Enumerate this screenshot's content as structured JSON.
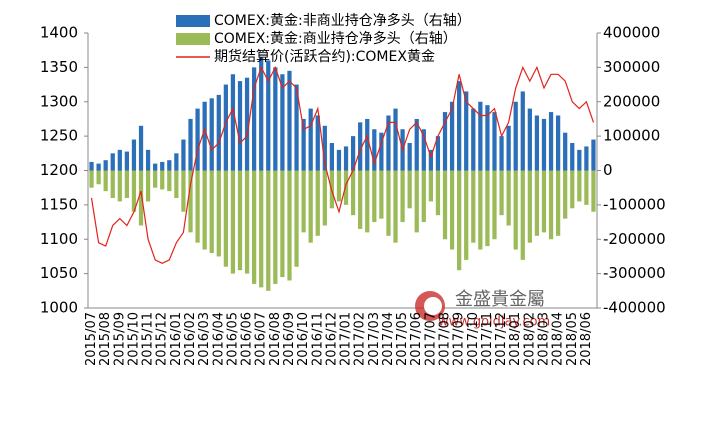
{
  "chart_data": {
    "type": "bar",
    "categories": [
      "2015/07",
      null,
      "2015/08",
      null,
      "2015/09",
      null,
      "2015/10",
      null,
      "2015/11",
      null,
      "2015/12",
      null,
      "2016/01",
      null,
      "2016/02",
      null,
      "2016/03",
      null,
      "2016/04",
      null,
      "2016/05",
      null,
      "2016/06",
      null,
      "2016/07",
      null,
      "2016/08",
      null,
      "2016/09",
      null,
      "2016/10",
      null,
      "2016/11",
      null,
      "2016/12",
      null,
      "2017/01",
      null,
      "2017/02",
      null,
      "2017/03",
      null,
      "2017/04",
      null,
      "2017/05",
      null,
      "2017/06",
      null,
      "2017/07",
      null,
      "2017/08",
      null,
      "2017/09",
      null,
      "2017/10",
      null,
      "2017/11",
      null,
      "2017/12",
      null,
      "2018/01",
      null,
      "2018/02",
      null,
      "2018/03",
      null,
      "2018/04",
      null,
      "2018/05",
      null,
      "2018/06",
      null
    ],
    "series": [
      {
        "name": "COMEX:黄金:非商业持仓净多头（右轴）",
        "type": "bar",
        "axis": "y2",
        "color": "#2a6fb7",
        "values": [
          25000,
          20000,
          30000,
          50000,
          60000,
          55000,
          90000,
          130000,
          60000,
          20000,
          25000,
          30000,
          50000,
          90000,
          150000,
          180000,
          200000,
          210000,
          220000,
          250000,
          280000,
          260000,
          270000,
          300000,
          330000,
          320000,
          300000,
          280000,
          290000,
          250000,
          150000,
          180000,
          160000,
          130000,
          80000,
          60000,
          70000,
          100000,
          140000,
          150000,
          120000,
          110000,
          160000,
          180000,
          120000,
          80000,
          150000,
          120000,
          60000,
          100000,
          170000,
          200000,
          260000,
          230000,
          180000,
          200000,
          190000,
          170000,
          100000,
          130000,
          200000,
          230000,
          180000,
          160000,
          150000,
          170000,
          160000,
          110000,
          80000,
          60000,
          70000,
          90000
        ]
      },
      {
        "name": "COMEX:黄金:商业持仓净多头（右轴）",
        "type": "bar",
        "axis": "y2",
        "color": "#9bbb59",
        "values": [
          -50000,
          -40000,
          -60000,
          -80000,
          -90000,
          -80000,
          -120000,
          -160000,
          -90000,
          -50000,
          -55000,
          -60000,
          -80000,
          -120000,
          -180000,
          -210000,
          -230000,
          -240000,
          -250000,
          -280000,
          -300000,
          -290000,
          -300000,
          -330000,
          -340000,
          -350000,
          -330000,
          -310000,
          -320000,
          -280000,
          -180000,
          -210000,
          -190000,
          -160000,
          -110000,
          -90000,
          -100000,
          -130000,
          -170000,
          -180000,
          -150000,
          -140000,
          -190000,
          -210000,
          -150000,
          -110000,
          -180000,
          -150000,
          -90000,
          -130000,
          -200000,
          -230000,
          -290000,
          -260000,
          -210000,
          -230000,
          -220000,
          -200000,
          -130000,
          -160000,
          -230000,
          -260000,
          -210000,
          -190000,
          -180000,
          -200000,
          -190000,
          -140000,
          -110000,
          -90000,
          -100000,
          -120000
        ]
      },
      {
        "name": "期货结算价(活跃合约):COMEX黄金",
        "type": "line",
        "color": "#e2231a",
        "values": [
          1160,
          1095,
          1090,
          1120,
          1130,
          1120,
          1140,
          1170,
          1100,
          1070,
          1065,
          1070,
          1095,
          1110,
          1180,
          1230,
          1260,
          1230,
          1240,
          1270,
          1290,
          1240,
          1250,
          1320,
          1350,
          1330,
          1350,
          1320,
          1330,
          1320,
          1260,
          1265,
          1290,
          1210,
          1170,
          1140,
          1180,
          1200,
          1230,
          1250,
          1210,
          1240,
          1270,
          1270,
          1230,
          1260,
          1270,
          1250,
          1220,
          1250,
          1270,
          1290,
          1340,
          1300,
          1290,
          1280,
          1280,
          1290,
          1250,
          1270,
          1320,
          1350,
          1330,
          1350,
          1320,
          1340,
          1340,
          1330,
          1300,
          1290,
          1300,
          1270
        ]
      }
    ],
    "ylim": [
      1000,
      1400
    ],
    "yticks": [
      1000,
      1050,
      1100,
      1150,
      1200,
      1250,
      1300,
      1350,
      1400
    ],
    "y2lim": [
      -400000,
      400000
    ],
    "y2ticks": [
      -400000,
      -300000,
      -200000,
      -100000,
      0,
      100000,
      200000,
      300000,
      400000
    ],
    "watermark": {
      "name": "金盛貴金屬",
      "url": "www.goldjay.com"
    }
  }
}
